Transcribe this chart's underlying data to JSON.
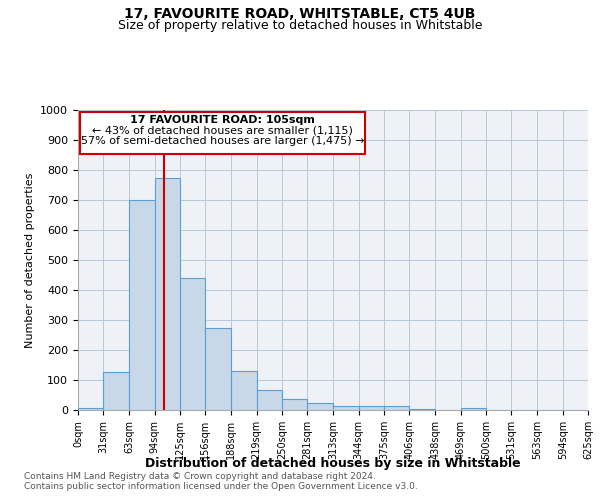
{
  "title1": "17, FAVOURITE ROAD, WHITSTABLE, CT5 4UB",
  "title2": "Size of property relative to detached houses in Whitstable",
  "xlabel": "Distribution of detached houses by size in Whitstable",
  "ylabel": "Number of detached properties",
  "footnote1": "Contains HM Land Registry data © Crown copyright and database right 2024.",
  "footnote2": "Contains public sector information licensed under the Open Government Licence v3.0.",
  "annotation_line1": "17 FAVOURITE ROAD: 105sqm",
  "annotation_line2": "← 43% of detached houses are smaller (1,115)",
  "annotation_line3": "57% of semi-detached houses are larger (1,475) →",
  "bar_edges": [
    0,
    31,
    63,
    94,
    125,
    156,
    188,
    219,
    250,
    281,
    313,
    344,
    375,
    406,
    438,
    469,
    500,
    531,
    563,
    594,
    625
  ],
  "bar_heights": [
    8,
    128,
    700,
    775,
    440,
    275,
    130,
    68,
    38,
    25,
    12,
    12,
    12,
    5,
    0,
    8,
    0,
    0,
    0,
    0
  ],
  "bar_color": "#c8d8e8",
  "bar_edge_color": "#5a9fd4",
  "property_line_x": 105,
  "property_line_color": "#cc0000",
  "ylim": [
    0,
    1000
  ],
  "xlim": [
    0,
    625
  ],
  "yticks": [
    0,
    100,
    200,
    300,
    400,
    500,
    600,
    700,
    800,
    900,
    1000
  ],
  "annotation_box_color": "#cc0000",
  "background_color": "#eef2f7",
  "grid_color": "#b8c8d8"
}
